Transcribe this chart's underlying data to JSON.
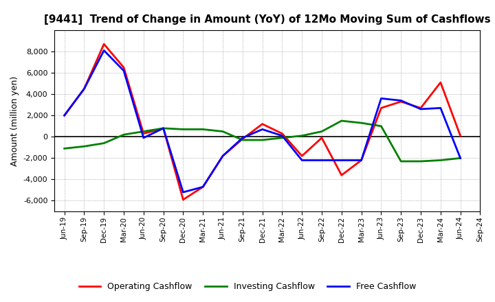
{
  "title": "[9441]  Trend of Change in Amount (YoY) of 12Mo Moving Sum of Cashflows",
  "ylabel": "Amount (million yen)",
  "x_labels": [
    "Jun-19",
    "Sep-19",
    "Dec-19",
    "Mar-20",
    "Jun-20",
    "Sep-20",
    "Dec-20",
    "Mar-21",
    "Jun-21",
    "Sep-21",
    "Dec-21",
    "Mar-22",
    "Jun-22",
    "Sep-22",
    "Dec-22",
    "Mar-23",
    "Jun-23",
    "Sep-23",
    "Dec-23",
    "Mar-24",
    "Jun-24",
    "Sep-24"
  ],
  "operating": [
    2000,
    4500,
    8700,
    6500,
    300,
    800,
    -5900,
    -4700,
    -1800,
    -200,
    1200,
    300,
    -1800,
    -100,
    -3600,
    -2200,
    2700,
    3300,
    2700,
    5100,
    100,
    null
  ],
  "investing": [
    -1100,
    -900,
    -600,
    200,
    500,
    800,
    700,
    700,
    500,
    -300,
    -300,
    -100,
    100,
    500,
    1500,
    1300,
    1000,
    -2300,
    -2300,
    -2200,
    -2000,
    null
  ],
  "free": [
    2000,
    4500,
    8100,
    6200,
    -100,
    800,
    -5200,
    -4700,
    -1800,
    -100,
    700,
    100,
    -2200,
    -2200,
    -2200,
    -2200,
    3600,
    3400,
    2600,
    2700,
    -2000,
    null
  ],
  "colors": {
    "operating": "#ff0000",
    "investing": "#008000",
    "free": "#0000ff"
  },
  "ylim": [
    -7000,
    10000
  ],
  "yticks": [
    -6000,
    -4000,
    -2000,
    0,
    2000,
    4000,
    6000,
    8000
  ],
  "line_width": 2.0,
  "bg_color": "#ffffff",
  "grid_color": "#999999",
  "legend_labels": [
    "Operating Cashflow",
    "Investing Cashflow",
    "Free Cashflow"
  ]
}
